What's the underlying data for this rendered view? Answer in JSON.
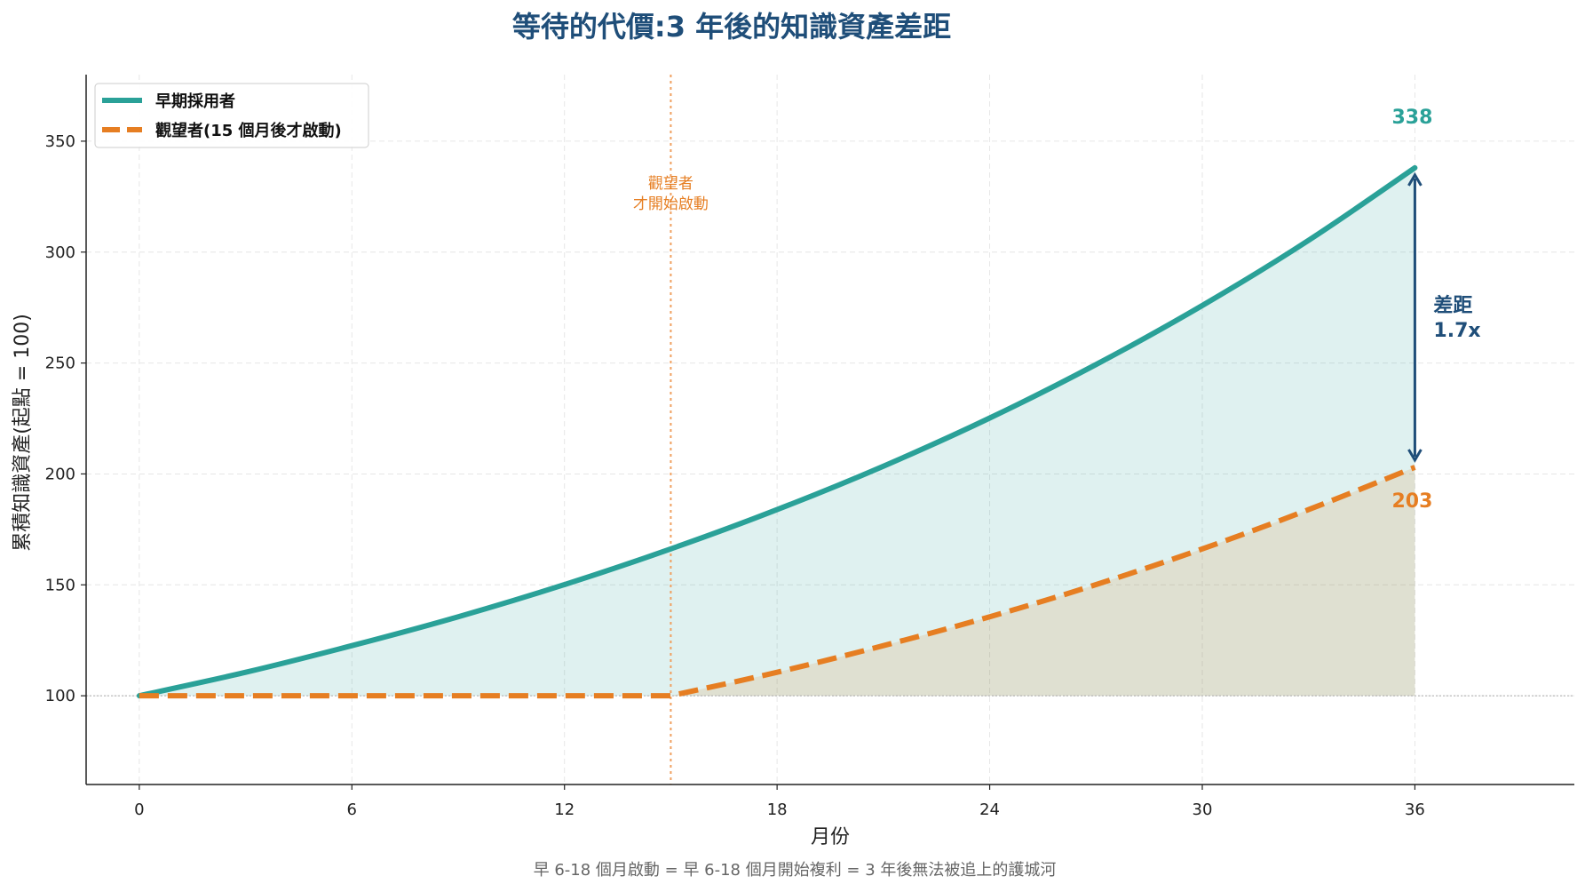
{
  "chart_data": {
    "type": "line",
    "title": "等待的代價:3 年後的知識資產差距",
    "xlabel": "月份",
    "ylabel": "累積知識資產(起點 = 100)",
    "footnote": "早 6-18 個月啟動 = 早 6-18 個月開始複利 = 3 年後無法被追上的護城河",
    "xlim": [
      -1.5,
      40.5
    ],
    "ylim": [
      60,
      380
    ],
    "xticks": [
      0,
      6,
      12,
      18,
      24,
      30,
      36
    ],
    "yticks": [
      100,
      150,
      200,
      250,
      300,
      350
    ],
    "grid": true,
    "legend_position": "top-left",
    "baseline": 100,
    "series": [
      {
        "name": "早期採用者",
        "style": "solid",
        "color": "#2aa198",
        "x": [
          0,
          3,
          6,
          9,
          12,
          15,
          18,
          21,
          24,
          27,
          30,
          33,
          36
        ],
        "y": [
          100,
          110.6,
          122.6,
          135.6,
          150.1,
          166.2,
          183.9,
          203.5,
          225.2,
          249.3,
          275.9,
          305.3,
          338
        ]
      },
      {
        "name": "觀望者(15 個月後才啟動)",
        "style": "dashed",
        "color": "#e67e22",
        "x": [
          0,
          3,
          6,
          9,
          12,
          15,
          18,
          21,
          24,
          27,
          30,
          33,
          36
        ],
        "y": [
          100,
          100,
          100,
          100,
          100,
          100,
          110.6,
          122.6,
          135.6,
          150.1,
          166.2,
          183.9,
          203
        ]
      }
    ],
    "annotations": {
      "start_line_x": 15,
      "start_label": [
        "觀望者",
        "才開始啟動"
      ],
      "end_label_early": "338",
      "end_label_late": "203",
      "gap_label": [
        "差距",
        "1.7x"
      ]
    }
  }
}
